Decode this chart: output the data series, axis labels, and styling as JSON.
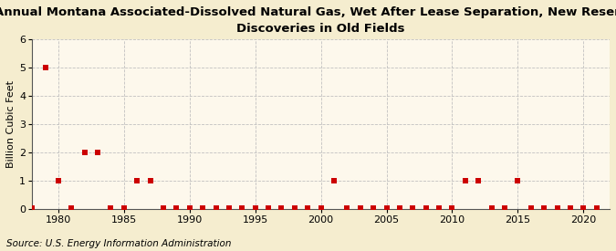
{
  "title": "Annual Montana Associated-Dissolved Natural Gas, Wet After Lease Separation, New Reservoir\nDiscoveries in Old Fields",
  "ylabel": "Billion Cubic Feet",
  "source": "Source: U.S. Energy Information Administration",
  "background_color": "#f5edcf",
  "plot_background_color": "#fdf8ec",
  "marker_color": "#cc0000",
  "grid_color": "#bbbbbb",
  "xlim": [
    1978,
    2022
  ],
  "ylim": [
    0,
    6
  ],
  "yticks": [
    0,
    1,
    2,
    3,
    4,
    5,
    6
  ],
  "xticks": [
    1980,
    1985,
    1990,
    1995,
    2000,
    2005,
    2010,
    2015,
    2020
  ],
  "years": [
    1978,
    1979,
    1980,
    1981,
    1982,
    1983,
    1984,
    1985,
    1986,
    1987,
    1988,
    1989,
    1990,
    1991,
    1992,
    1993,
    1994,
    1995,
    1996,
    1997,
    1998,
    1999,
    2000,
    2001,
    2002,
    2003,
    2004,
    2005,
    2006,
    2007,
    2008,
    2009,
    2010,
    2011,
    2012,
    2013,
    2014,
    2015,
    2016,
    2017,
    2018,
    2019,
    2020,
    2021
  ],
  "values": [
    0.02,
    5.0,
    1.0,
    0.02,
    2.0,
    2.0,
    0.02,
    0.02,
    1.0,
    1.0,
    0.02,
    0.02,
    0.02,
    0.02,
    0.02,
    0.02,
    0.02,
    0.02,
    0.02,
    0.02,
    0.02,
    0.02,
    0.02,
    1.0,
    0.02,
    0.02,
    0.02,
    0.02,
    0.02,
    0.02,
    0.02,
    0.02,
    0.02,
    1.0,
    1.0,
    0.02,
    0.02,
    1.0,
    0.02,
    0.02,
    0.02,
    0.02,
    0.02,
    0.02
  ],
  "title_fontsize": 9.5,
  "axis_fontsize": 8,
  "source_fontsize": 7.5,
  "marker_size": 14
}
